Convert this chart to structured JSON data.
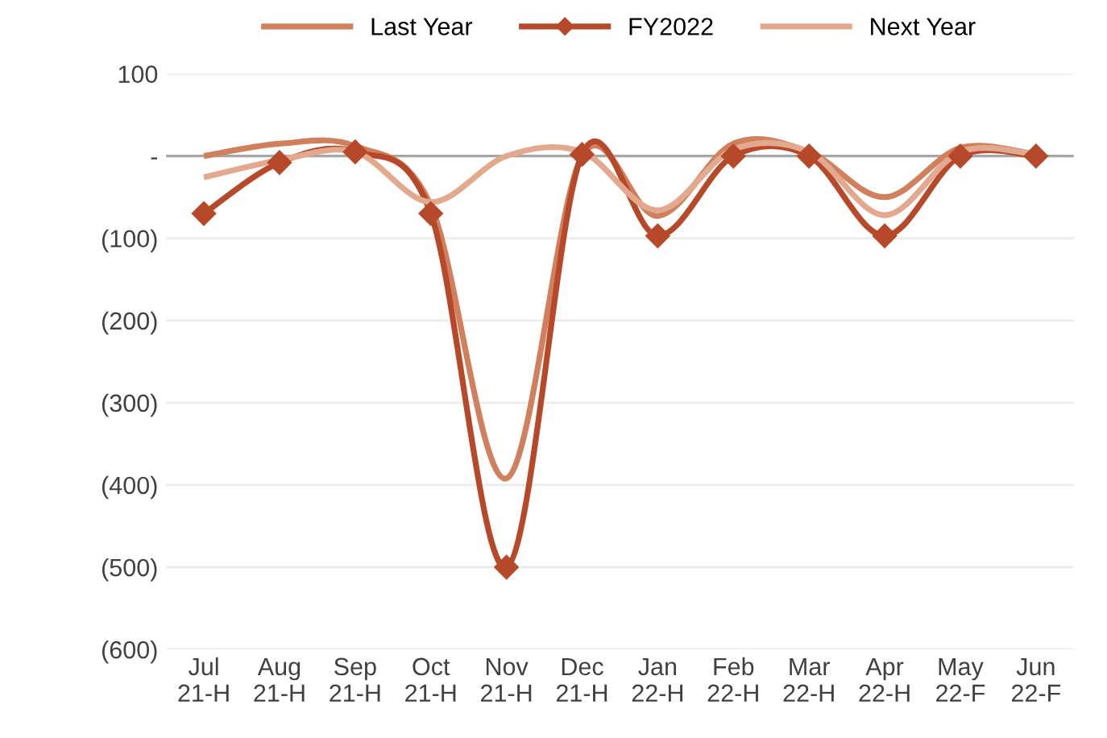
{
  "chart_data": {
    "type": "line",
    "categories": [
      "Jul\n21-H",
      "Aug\n21-H",
      "Sep\n21-H",
      "Oct\n21-H",
      "Nov\n21-H",
      "Dec\n21-H",
      "Jan\n22-H",
      "Feb\n22-H",
      "Mar\n22-H",
      "Apr\n22-H",
      "May\n22-F",
      "Jun\n22-F"
    ],
    "series": [
      {
        "name": "Last Year",
        "color": "#d0805c",
        "marker": "none",
        "values": [
          0,
          15,
          12,
          -60,
          -392,
          0,
          -73,
          15,
          5,
          -50,
          10,
          2
        ]
      },
      {
        "name": "FY2022",
        "color": "#b5492a",
        "marker": "diamond",
        "values": [
          -70,
          -8,
          5,
          -70,
          -500,
          2,
          -97,
          0,
          0,
          -97,
          0,
          0
        ]
      },
      {
        "name": "Next Year",
        "color": "#e2a98e",
        "marker": "none",
        "values": [
          -26,
          -5,
          5,
          -56,
          0,
          5,
          -66,
          8,
          5,
          -72,
          5,
          2
        ]
      }
    ],
    "ylim": [
      -600,
      100
    ],
    "yticks": [
      {
        "value": 100,
        "label": "100"
      },
      {
        "value": 0,
        "label": "-"
      },
      {
        "value": -100,
        "label": "(100)"
      },
      {
        "value": -200,
        "label": "(200)"
      },
      {
        "value": -300,
        "label": "(300)"
      },
      {
        "value": -400,
        "label": "(400)"
      },
      {
        "value": -500,
        "label": "(500)"
      },
      {
        "value": -600,
        "label": "(600)"
      }
    ],
    "ref_lines": [
      {
        "axis": "y",
        "value": 0,
        "color": "#a6a6a6"
      }
    ],
    "grid": "y",
    "legend": "top",
    "line_style": "solid"
  }
}
